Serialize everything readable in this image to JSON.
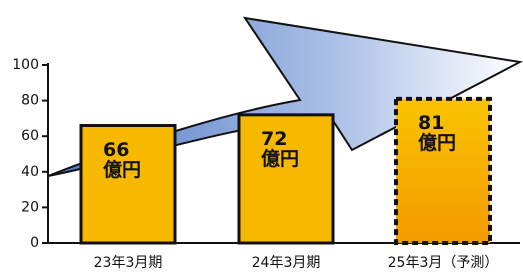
{
  "chart_data": {
    "type": "bar",
    "categories": [
      "23年3月期",
      "24年3月期",
      "25年3月（予測）"
    ],
    "values": [
      66,
      72,
      81
    ],
    "value_labels": [
      "66\n億円",
      "72\n億円",
      "81\n億円"
    ],
    "forecast": [
      false,
      false,
      true
    ],
    "color": "#f7b900",
    "ylim": [
      0,
      100
    ],
    "yticks": [
      0,
      20,
      40,
      60,
      80,
      100
    ]
  }
}
